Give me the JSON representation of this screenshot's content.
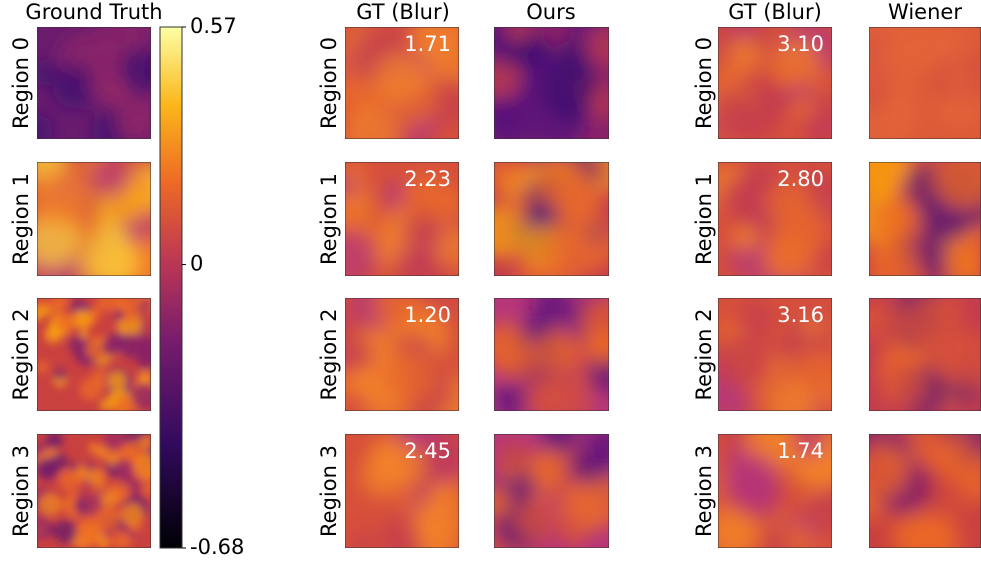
{
  "colorbar": {
    "lim": [
      -0.68,
      0.57
    ],
    "ticks": [
      0.57,
      0,
      -0.68
    ]
  },
  "groups": [
    {
      "columns": [
        "Ground Truth"
      ],
      "rows": [
        "Region 0",
        "Region 1",
        "Region 2",
        "Region 3"
      ]
    },
    {
      "columns": [
        "GT (Blur)",
        "Ours"
      ],
      "rows": [
        "Region 0",
        "Region 1",
        "Region 2",
        "Region 3"
      ],
      "scores": [
        "1.71",
        "2.23",
        "1.20",
        "2.45"
      ]
    },
    {
      "columns": [
        "GT (Blur)",
        "Wiener"
      ],
      "rows": [
        "Region 0",
        "Region 1",
        "Region 2",
        "Region 3"
      ],
      "scores": [
        "3.10",
        "2.80",
        "3.16",
        "1.74"
      ]
    }
  ]
}
